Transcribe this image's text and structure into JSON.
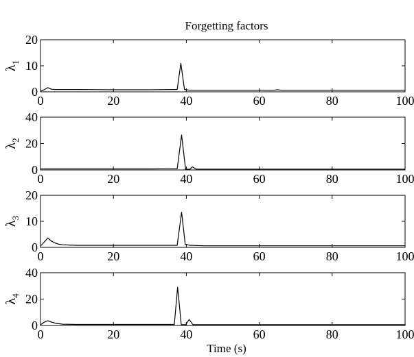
{
  "chart_data": {
    "type": "line",
    "title": "Forgetting factors",
    "xlabel": "Time (s)",
    "xlim": [
      0,
      100
    ],
    "xticks": [
      0,
      20,
      40,
      60,
      80,
      100
    ],
    "grid": false,
    "line_color": "#000000",
    "panels": [
      {
        "ylabel_symbol": "λ",
        "ylabel_sub": "1",
        "ylim": [
          0,
          20
        ],
        "yticks": [
          0,
          10,
          20
        ],
        "x": [
          0,
          1,
          2,
          3,
          4,
          6,
          10,
          20,
          30,
          37.5,
          38.5,
          39.5,
          41,
          45,
          55,
          64,
          65,
          66,
          67,
          80,
          90,
          100
        ],
        "y": [
          0.3,
          0.8,
          1.6,
          1.0,
          0.9,
          0.9,
          0.9,
          0.8,
          0.8,
          0.9,
          11.0,
          0.9,
          0.6,
          0.6,
          0.6,
          0.6,
          0.8,
          0.6,
          0.6,
          0.6,
          0.6,
          0.6
        ]
      },
      {
        "ylabel_symbol": "λ",
        "ylabel_sub": "2",
        "ylim": [
          0,
          40
        ],
        "yticks": [
          0,
          20,
          40
        ],
        "x": [
          0,
          10,
          20,
          30,
          37.5,
          38.7,
          39.8,
          41,
          41.7,
          42.7,
          45,
          55,
          70,
          85,
          100
        ],
        "y": [
          0.8,
          0.8,
          0.8,
          0.8,
          0.9,
          26.5,
          0.5,
          0.5,
          2.3,
          0.6,
          0.6,
          0.6,
          0.6,
          0.6,
          0.6
        ]
      },
      {
        "ylabel_symbol": "λ",
        "ylabel_sub": "3",
        "ylim": [
          0,
          20
        ],
        "yticks": [
          0,
          10,
          20
        ],
        "x": [
          0,
          1,
          2,
          3,
          4,
          5,
          6,
          8,
          10,
          20,
          30,
          37.5,
          38.7,
          39.7,
          41,
          45,
          55,
          65,
          75,
          85,
          100
        ],
        "y": [
          0.5,
          2.0,
          3.6,
          2.4,
          1.7,
          1.2,
          1.0,
          0.9,
          0.8,
          0.8,
          0.8,
          0.8,
          13.5,
          1.2,
          0.8,
          0.6,
          0.6,
          0.6,
          0.6,
          0.6,
          0.6
        ]
      },
      {
        "ylabel_symbol": "λ",
        "ylabel_sub": "4",
        "ylim": [
          0,
          40
        ],
        "yticks": [
          0,
          20,
          40
        ],
        "x": [
          0,
          1,
          2,
          3,
          4,
          6,
          10,
          20,
          30,
          36.7,
          37.6,
          38.6,
          39.8,
          40.8,
          41.8,
          45,
          55,
          65,
          75,
          85,
          100
        ],
        "y": [
          0.5,
          2.5,
          3.6,
          2.6,
          1.8,
          1.0,
          0.8,
          0.8,
          0.8,
          0.8,
          29.0,
          0.6,
          0.6,
          4.5,
          0.6,
          0.6,
          0.6,
          0.6,
          0.6,
          0.6,
          0.6
        ]
      }
    ]
  }
}
